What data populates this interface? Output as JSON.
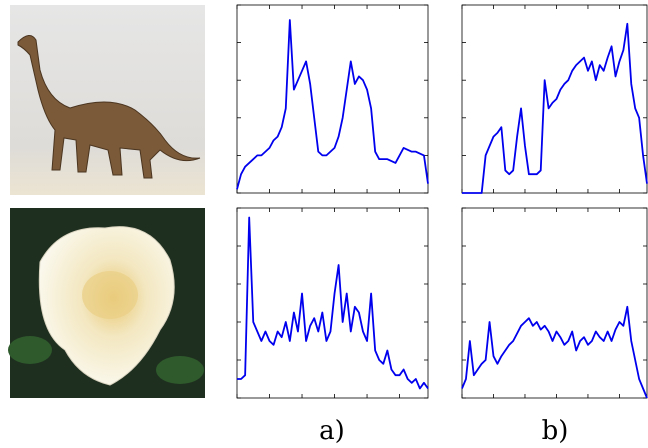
{
  "chart_data": [
    {
      "type": "line",
      "xlim": [
        0,
        47
      ],
      "xticks": [
        0,
        8,
        16,
        24,
        32,
        40
      ],
      "ylim": [
        0,
        100
      ],
      "yticks": [
        0,
        20,
        40,
        60,
        80,
        100
      ],
      "series": [
        {
          "color": "#0000ee",
          "values": [
            2,
            10,
            14,
            16,
            18,
            20,
            20,
            22,
            24,
            28,
            30,
            35,
            45,
            92,
            55,
            60,
            65,
            70,
            58,
            40,
            22,
            20,
            20,
            22,
            24,
            30,
            40,
            55,
            70,
            58,
            62,
            60,
            55,
            45,
            22,
            18,
            18,
            18,
            17,
            16,
            20,
            24,
            23,
            22,
            22,
            21,
            20,
            5
          ]
        }
      ]
    },
    {
      "type": "line",
      "xlim": [
        0,
        47
      ],
      "xticks": [
        0,
        8,
        16,
        24,
        32,
        40
      ],
      "ylim": [
        0,
        100
      ],
      "yticks": [
        0,
        20,
        40,
        60,
        80,
        100
      ],
      "series": [
        {
          "color": "#0000ee",
          "values": [
            0,
            0,
            0,
            0,
            0,
            0,
            20,
            25,
            30,
            32,
            35,
            12,
            10,
            12,
            30,
            45,
            25,
            10,
            10,
            10,
            12,
            60,
            45,
            48,
            50,
            55,
            58,
            60,
            65,
            68,
            70,
            72,
            65,
            70,
            60,
            68,
            65,
            72,
            78,
            62,
            70,
            76,
            90,
            58,
            45,
            40,
            20,
            5
          ]
        }
      ]
    },
    {
      "type": "line",
      "xlim": [
        0,
        47
      ],
      "xticks": [
        0,
        8,
        16,
        24,
        32,
        40
      ],
      "ylim": [
        0,
        100
      ],
      "yticks": [
        0,
        20,
        40,
        60,
        80,
        100
      ],
      "series": [
        {
          "color": "#0000ee",
          "values": [
            10,
            10,
            12,
            95,
            40,
            35,
            30,
            35,
            30,
            28,
            35,
            32,
            40,
            30,
            45,
            35,
            55,
            30,
            38,
            42,
            35,
            45,
            30,
            35,
            55,
            70,
            40,
            55,
            35,
            48,
            45,
            35,
            30,
            55,
            25,
            20,
            18,
            25,
            15,
            12,
            12,
            15,
            10,
            8,
            10,
            5,
            8,
            5
          ]
        }
      ]
    },
    {
      "type": "line",
      "xlim": [
        0,
        47
      ],
      "xticks": [
        0,
        8,
        16,
        24,
        32,
        40
      ],
      "ylim": [
        0,
        100
      ],
      "yticks": [
        0,
        20,
        40,
        60,
        80,
        100
      ],
      "series": [
        {
          "color": "#0000ee",
          "values": [
            5,
            10,
            30,
            12,
            15,
            18,
            20,
            40,
            22,
            18,
            22,
            25,
            28,
            30,
            34,
            38,
            40,
            42,
            38,
            40,
            36,
            38,
            35,
            30,
            35,
            32,
            28,
            30,
            35,
            25,
            30,
            32,
            28,
            30,
            35,
            32,
            30,
            35,
            30,
            36,
            40,
            38,
            48,
            30,
            20,
            10,
            5,
            0
          ]
        }
      ]
    }
  ],
  "captions": [
    "a)",
    "b)"
  ]
}
